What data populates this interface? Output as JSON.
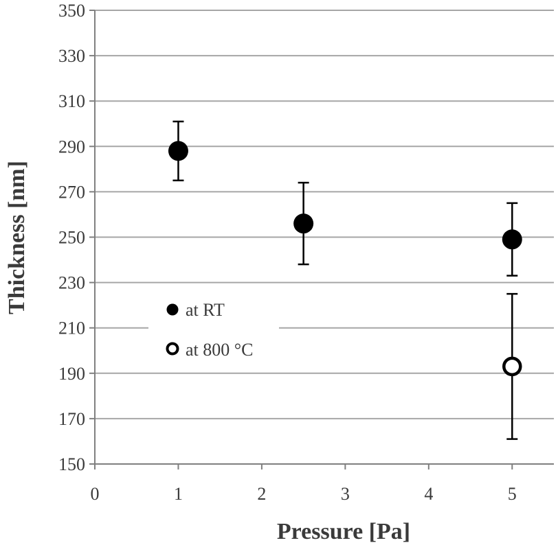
{
  "chart_data": {
    "type": "scatter",
    "title": "",
    "xlabel": "Pressure [Pa]",
    "ylabel": "Thickness [nm]",
    "xlim": [
      0,
      5.5
    ],
    "ylim": [
      150,
      350
    ],
    "x_ticks": [
      0,
      1,
      2,
      3,
      4,
      5
    ],
    "y_ticks": [
      150,
      170,
      190,
      210,
      230,
      250,
      270,
      290,
      310,
      330,
      350
    ],
    "grid": "horizontal",
    "legend_position": "center-left",
    "series": [
      {
        "name": "at RT",
        "marker": "filled-circle",
        "points": [
          {
            "x": 1,
            "y": 288,
            "err_low": 275,
            "err_high": 301
          },
          {
            "x": 2.5,
            "y": 256,
            "err_low": 238,
            "err_high": 274
          },
          {
            "x": 5,
            "y": 249,
            "err_low": 233,
            "err_high": 265
          }
        ]
      },
      {
        "name": "at 800 °C",
        "marker": "open-circle",
        "points": [
          {
            "x": 5,
            "y": 193,
            "err_low": 161,
            "err_high": 225
          }
        ]
      }
    ]
  },
  "colors": {
    "grid": "#a6a6a6",
    "axis": "#7f7f7f",
    "marker": "#000000",
    "text": "#3a3a3a",
    "background": "#ffffff"
  }
}
